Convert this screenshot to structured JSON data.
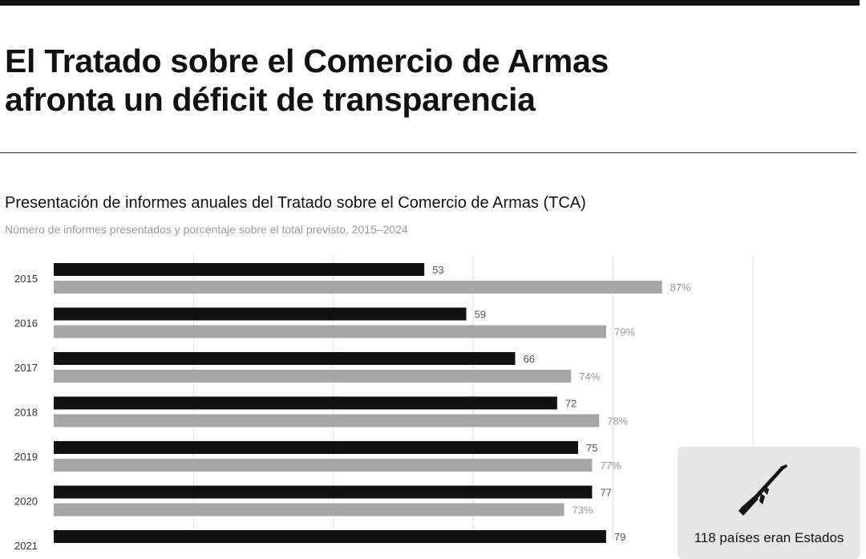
{
  "headline": {
    "line1": "El Tratado sobre el Comercio de Armas",
    "line2": "afronta un déficit de transparencia"
  },
  "info_box": {
    "icon": "rifle-icon",
    "text": "118 países eran Estados"
  },
  "colors": {
    "reports": "#111111",
    "percent": "#a6a6a6",
    "label": "#333333",
    "grid": "#e2e2e2"
  },
  "chart_data": {
    "type": "bar",
    "orientation": "horizontal",
    "title": "Presentación de informes anuales del Tratado sobre el Comercio de Armas (TCA)",
    "subtitle": "Número de informes presentados y porcentaje sobre el total previsto, 2015–2024",
    "categories": [
      "2015",
      "2016",
      "2017",
      "2018",
      "2019",
      "2020",
      "2021"
    ],
    "series": [
      {
        "values": [
          53,
          59,
          66,
          72,
          75,
          77,
          79
        ],
        "labels": [
          "53",
          "59",
          "66",
          "72",
          "75",
          "77",
          "79"
        ]
      },
      {
        "values": [
          87,
          79,
          74,
          78,
          77,
          73,
          null
        ],
        "labels": [
          "87%",
          "79%",
          "74%",
          "78%",
          "77%",
          "73%",
          ""
        ]
      }
    ],
    "xlim": [
      0,
      100
    ],
    "grid": true,
    "legend": "none"
  }
}
